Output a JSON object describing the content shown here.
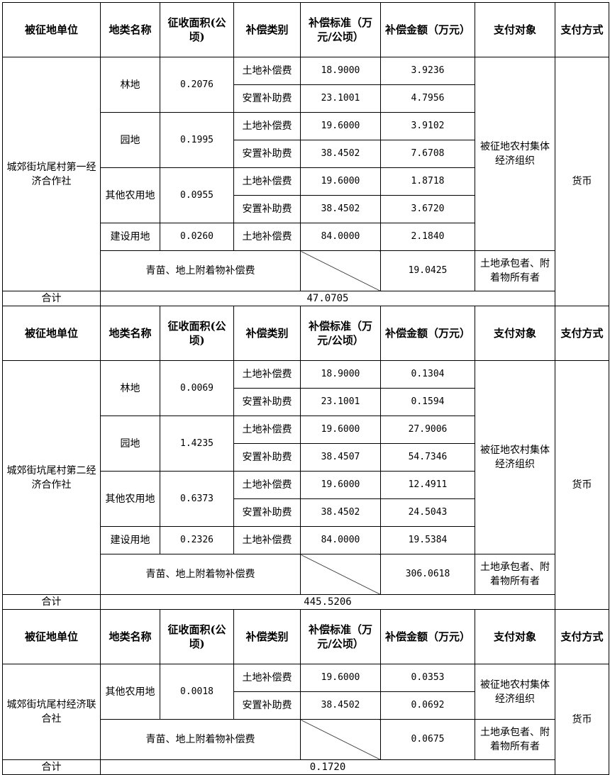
{
  "headers": [
    "被征地单位",
    "地类名称",
    "征收面积(公顷)",
    "补偿类别",
    "补偿标准（万元/公顷）",
    "补偿金额（万元）",
    "支付对象",
    "支付方式"
  ],
  "total_label": "合计",
  "sections": [
    {
      "unit": "城郊街坑尾村第一经济合作社",
      "land_types": [
        {
          "name": "林地",
          "area": "0.2076",
          "items": [
            {
              "category": "土地补偿费",
              "standard": "18.9000",
              "amount": "3.9236"
            },
            {
              "category": "安置补助费",
              "standard": "23.1001",
              "amount": "4.7956"
            }
          ]
        },
        {
          "name": "园地",
          "area": "0.1995",
          "items": [
            {
              "category": "土地补偿费",
              "standard": "19.6000",
              "amount": "3.9102"
            },
            {
              "category": "安置补助费",
              "standard": "38.4502",
              "amount": "7.6708"
            }
          ]
        },
        {
          "name": "其他农用地",
          "area": "0.0955",
          "items": [
            {
              "category": "土地补偿费",
              "standard": "19.6000",
              "amount": "1.8718"
            },
            {
              "category": "安置补助费",
              "standard": "38.4502",
              "amount": "3.6720"
            }
          ]
        },
        {
          "name": "建设用地",
          "area": "0.0260",
          "items": [
            {
              "category": "土地补偿费",
              "standard": "84.0000",
              "amount": "2.1840"
            }
          ]
        }
      ],
      "payee_collective": "被征地农村集体经济组织",
      "attachment": {
        "label": "青苗、地上附着物补偿费",
        "amount": "19.0425",
        "payee": "土地承包者、附着物所有者"
      },
      "payment_method": "货币",
      "total": "47.0705"
    },
    {
      "unit": "城郊街坑尾村第二经济合作社",
      "land_types": [
        {
          "name": "林地",
          "area": "0.0069",
          "items": [
            {
              "category": "土地补偿费",
              "standard": "18.9000",
              "amount": "0.1304"
            },
            {
              "category": "安置补助费",
              "standard": "23.1001",
              "amount": "0.1594"
            }
          ]
        },
        {
          "name": "园地",
          "area": "1.4235",
          "items": [
            {
              "category": "土地补偿费",
              "standard": "19.6000",
              "amount": "27.9006"
            },
            {
              "category": "安置补助费",
              "standard": "38.4507",
              "amount": "54.7346"
            }
          ]
        },
        {
          "name": "其他农用地",
          "area": "0.6373",
          "items": [
            {
              "category": "土地补偿费",
              "standard": "19.6000",
              "amount": "12.4911"
            },
            {
              "category": "安置补助费",
              "standard": "38.4502",
              "amount": "24.5043"
            }
          ]
        },
        {
          "name": "建设用地",
          "area": "0.2326",
          "items": [
            {
              "category": "土地补偿费",
              "standard": "84.0000",
              "amount": "19.5384"
            }
          ]
        }
      ],
      "payee_collective": "被征地农村集体经济组织",
      "attachment": {
        "label": "青苗、地上附着物补偿费",
        "amount": "306.0618",
        "payee": "土地承包者、附着物所有者"
      },
      "payment_method": "货币",
      "total": "445.5206"
    },
    {
      "unit": "城郊街坑尾村经济联合社",
      "land_types": [
        {
          "name": "其他农用地",
          "area": "0.0018",
          "items": [
            {
              "category": "土地补偿费",
              "standard": "19.6000",
              "amount": "0.0353"
            },
            {
              "category": "安置补助费",
              "standard": "38.4502",
              "amount": "0.0692"
            }
          ]
        }
      ],
      "payee_collective": "被征地农村集体经济组织",
      "attachment": {
        "label": "青苗、地上附着物补偿费",
        "amount": "0.0675",
        "payee": "土地承包者、附着物所有者"
      },
      "payment_method": "货币",
      "total": "0.1720"
    }
  ]
}
